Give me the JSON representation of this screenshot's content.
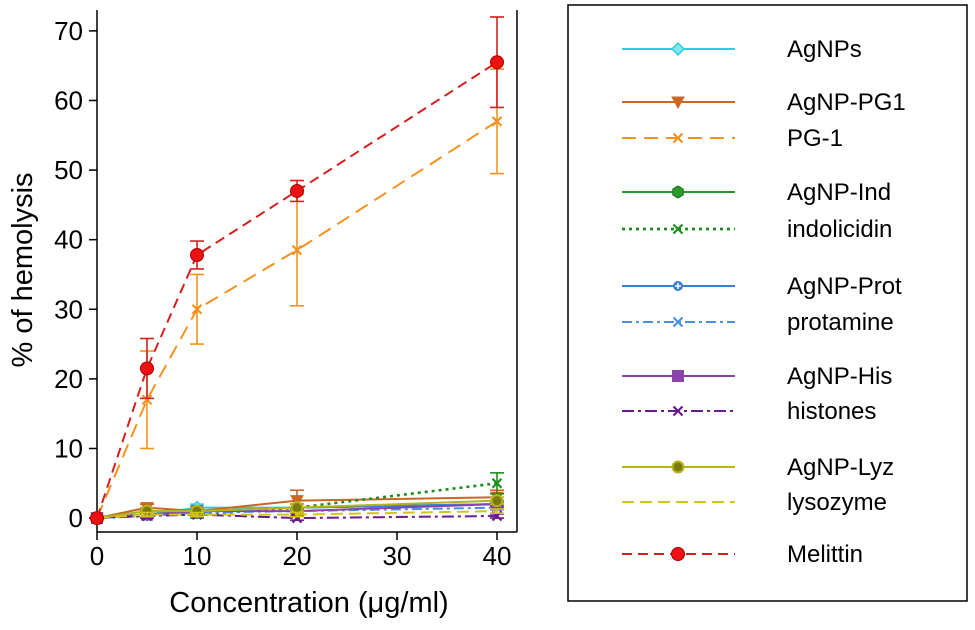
{
  "chart_data": {
    "type": "line",
    "title": "",
    "xlabel": "Concentration (μg/ml)",
    "ylabel": "% of hemolysis",
    "xlim": [
      0,
      42
    ],
    "ylim": [
      -2,
      73
    ],
    "xticks": [
      0,
      10,
      20,
      30,
      40
    ],
    "yticks": [
      0,
      10,
      20,
      30,
      40,
      50,
      60,
      70
    ],
    "x": [
      0,
      5,
      10,
      20,
      40
    ],
    "grid": false,
    "legend_position": "right",
    "series": [
      {
        "name": "AgNPs",
        "values": [
          0,
          0.5,
          1.5,
          1.5,
          2.0
        ],
        "errors": [
          0,
          0.5,
          0.5,
          0.5,
          0.5
        ],
        "color": "#33ccdd",
        "dash": "",
        "marker": "diamond"
      },
      {
        "name": "AgNP-PG1",
        "values": [
          0,
          1.5,
          1.0,
          2.5,
          3.0
        ],
        "errors": [
          0,
          0.5,
          0.5,
          1.5,
          1.0
        ],
        "color": "#cc6622",
        "dash": "",
        "marker": "triangle-down"
      },
      {
        "name": "PG-1",
        "values": [
          0,
          17,
          30,
          38.5,
          57
        ],
        "errors": [
          0,
          7,
          5,
          8,
          7.5
        ],
        "color": "#f5921e",
        "dash": "14 8",
        "marker": "x"
      },
      {
        "name": "AgNP-Ind",
        "values": [
          0,
          1.0,
          1.0,
          1.5,
          2.0
        ],
        "errors": [
          0,
          0.5,
          0.5,
          0.5,
          0.5
        ],
        "color": "#2a9a2a",
        "dash": "",
        "marker": "hexagon"
      },
      {
        "name": "indolicidin",
        "values": [
          0,
          0.5,
          0.5,
          1.5,
          5.0
        ],
        "errors": [
          0,
          0.5,
          0.5,
          0.5,
          1.5
        ],
        "color": "#1e8c1e",
        "dash": "3 4",
        "marker": "x"
      },
      {
        "name": "AgNP-Prot",
        "values": [
          0,
          0.5,
          1.0,
          1.5,
          2.0
        ],
        "errors": [
          0,
          0.5,
          0.5,
          0.5,
          0.5
        ],
        "color": "#3b7fd4",
        "dash": "",
        "marker": "plus"
      },
      {
        "name": "protamine",
        "values": [
          0,
          0.3,
          0.8,
          1.0,
          1.5
        ],
        "errors": [
          0,
          0.3,
          0.3,
          0.3,
          0.3
        ],
        "color": "#4a90e2",
        "dash": "10 4 3 4",
        "marker": "x"
      },
      {
        "name": "AgNP-His",
        "values": [
          0,
          0.5,
          1.0,
          1.0,
          2.0
        ],
        "errors": [
          0,
          0.3,
          0.3,
          0.3,
          0.3
        ],
        "color": "#8844aa",
        "dash": "",
        "marker": "square"
      },
      {
        "name": "histones",
        "values": [
          0,
          0.3,
          0.5,
          0.0,
          0.3
        ],
        "errors": [
          0,
          0.3,
          0.3,
          0.3,
          0.3
        ],
        "color": "#6a1b8a",
        "dash": "12 4 3 4",
        "marker": "x"
      },
      {
        "name": "AgNP-Lyz",
        "values": [
          0,
          1.0,
          1.0,
          1.5,
          2.5
        ],
        "errors": [
          0,
          0.5,
          0.5,
          0.5,
          0.5
        ],
        "color": "#b5b51a",
        "dash": "",
        "marker": "circle-lyz"
      },
      {
        "name": "lysozyme",
        "values": [
          0,
          0.5,
          0.5,
          0.5,
          1.0
        ],
        "errors": [
          0,
          0.3,
          0.3,
          0.3,
          0.3
        ],
        "color": "#d4c41c",
        "dash": "12 6",
        "marker": "none"
      },
      {
        "name": "Melittin",
        "values": [
          0,
          21.5,
          37.8,
          47,
          65.5
        ],
        "errors": [
          0,
          4.3,
          2.0,
          1.5,
          6.5
        ],
        "color": "#d42020",
        "dash": "10 6",
        "marker": "circle"
      }
    ]
  }
}
